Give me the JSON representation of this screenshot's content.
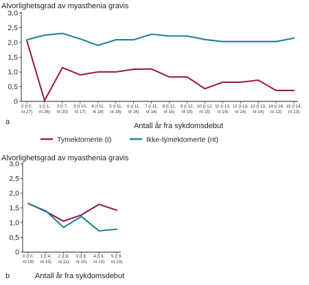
{
  "chart_data": [
    {
      "type": "line",
      "panel_label": "a",
      "ylabel": "Alvorlighetsgrad av myasthenia gravis",
      "xlabel": "Antall år fra sykdomsdebut",
      "ylim": [
        0,
        3.0
      ],
      "yticks": [
        "0",
        "0,5",
        "1,0",
        "1,5",
        "2,0",
        "2,5",
        "3,0"
      ],
      "ytick_values": [
        0,
        0.5,
        1.0,
        1.5,
        2.0,
        2.5,
        3.0
      ],
      "categories": [
        [
          "0 (t 0,",
          "nt 27)"
        ],
        [
          "1 (t 1,",
          "nt 26)"
        ],
        [
          "2 (t 7,",
          "nt 20)"
        ],
        [
          "3 (t 10,",
          "nt 17)"
        ],
        [
          "4 (t 11,",
          "nt 16)"
        ],
        [
          "5 (t 11,",
          "nt 16)"
        ],
        [
          "6 (t 11,",
          "nt 16)"
        ],
        [
          "7 (t 11,",
          "nt 16)"
        ],
        [
          "8 (t 12,",
          "nt 15)"
        ],
        [
          "9 (t 12,",
          "nt 15)"
        ],
        [
          "10 (t 12,",
          "nt 15)"
        ],
        [
          "11 (t 13,",
          "nt 14)"
        ],
        [
          "12 (t 13,",
          "nt 14)"
        ],
        [
          "13 (t 13,",
          "nt 14)"
        ],
        [
          "14 (t 14,",
          "nt 13)"
        ],
        [
          "15 (t 14,",
          "nt 13)"
        ]
      ],
      "series": [
        {
          "name": "Tymektomerte (t)",
          "color": "#9b1c45",
          "values": [
            2.07,
            0.03,
            1.15,
            0.9,
            1.0,
            1.0,
            1.09,
            1.1,
            0.83,
            0.83,
            0.43,
            0.65,
            0.65,
            0.72,
            0.37,
            0.37
          ]
        },
        {
          "name": "Ikke-tymektomerte (nt)",
          "color": "#1f7e9c",
          "values": [
            2.09,
            2.25,
            2.31,
            2.12,
            1.9,
            2.09,
            2.09,
            2.28,
            2.22,
            2.22,
            2.1,
            2.03,
            2.03,
            2.03,
            2.03,
            2.15
          ]
        }
      ]
    },
    {
      "type": "line",
      "panel_label": "b",
      "ylabel": "Alvorlighetsgrad av myasthenia gravis",
      "xlabel": "Antall år fra sykdomsdebut",
      "ylim": [
        0,
        3.0
      ],
      "yticks": [
        "0",
        "0,5",
        "1,0",
        "1,5",
        "2,0",
        "2,5",
        "3,0"
      ],
      "ytick_values": [
        0,
        0.5,
        1.0,
        1.5,
        2.0,
        2.5,
        3.0
      ],
      "categories": [
        [
          "0 (t 0,",
          "nt 19)"
        ],
        [
          "1 (t 4,",
          "nt 15)"
        ],
        [
          "2 (t 8,",
          "nt 11)"
        ],
        [
          "3 (t 9,",
          "nt 10)"
        ],
        [
          "4 (t 9,",
          "nt 10)"
        ],
        [
          "5 (t 9,",
          "nt 10)"
        ]
      ],
      "series": [
        {
          "name": "Tymektomerte (t)",
          "color": "#9b1c45",
          "values": [
            1.65,
            1.38,
            1.05,
            1.26,
            1.62,
            1.42
          ]
        },
        {
          "name": "Ikke-tymektomerte (nt)",
          "color": "#1f7e9c",
          "values": [
            1.65,
            1.4,
            0.84,
            1.21,
            0.72,
            0.78
          ]
        }
      ]
    }
  ],
  "legend": [
    {
      "label": "Tymektomerte (t)",
      "color": "#9b1c45"
    },
    {
      "label": "Ikke-tymektomerte (nt)",
      "color": "#1f7e9c"
    }
  ],
  "colors": {
    "axis": "#231f20",
    "grid": "#cfcfcf"
  }
}
